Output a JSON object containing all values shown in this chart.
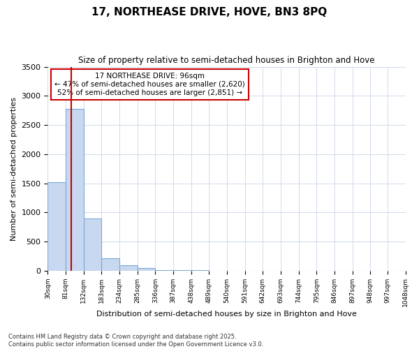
{
  "title": "17, NORTHEASE DRIVE, HOVE, BN3 8PQ",
  "subtitle": "Size of property relative to semi-detached houses in Brighton and Hove",
  "xlabel": "Distribution of semi-detached houses by size in Brighton and Hove",
  "ylabel": "Number of semi-detached properties",
  "bin_edges": [
    30,
    81,
    132,
    183,
    234,
    285,
    336,
    387,
    438,
    489,
    540,
    591,
    642,
    693,
    744,
    795,
    846,
    897,
    948,
    997,
    1048
  ],
  "bar_heights": [
    1520,
    2780,
    900,
    215,
    90,
    40,
    12,
    5,
    3,
    2,
    1,
    1,
    1,
    0,
    0,
    0,
    0,
    0,
    0,
    0
  ],
  "bar_color": "#c8d8f0",
  "bar_edge_color": "#7aaad8",
  "grid_color": "#d0daea",
  "property_size": 96,
  "red_line_color": "#cc0000",
  "annotation_text": "17 NORTHEASE DRIVE: 96sqm\n← 47% of semi-detached houses are smaller (2,620)\n52% of semi-detached houses are larger (2,851) →",
  "annotation_box_color": "#cc0000",
  "ylim": [
    0,
    3500
  ],
  "yticks": [
    0,
    500,
    1000,
    1500,
    2000,
    2500,
    3000,
    3500
  ],
  "footer1": "Contains HM Land Registry data © Crown copyright and database right 2025.",
  "footer2": "Contains public sector information licensed under the Open Government Licence v3.0.",
  "background_color": "#ffffff",
  "plot_bg_color": "#ffffff"
}
